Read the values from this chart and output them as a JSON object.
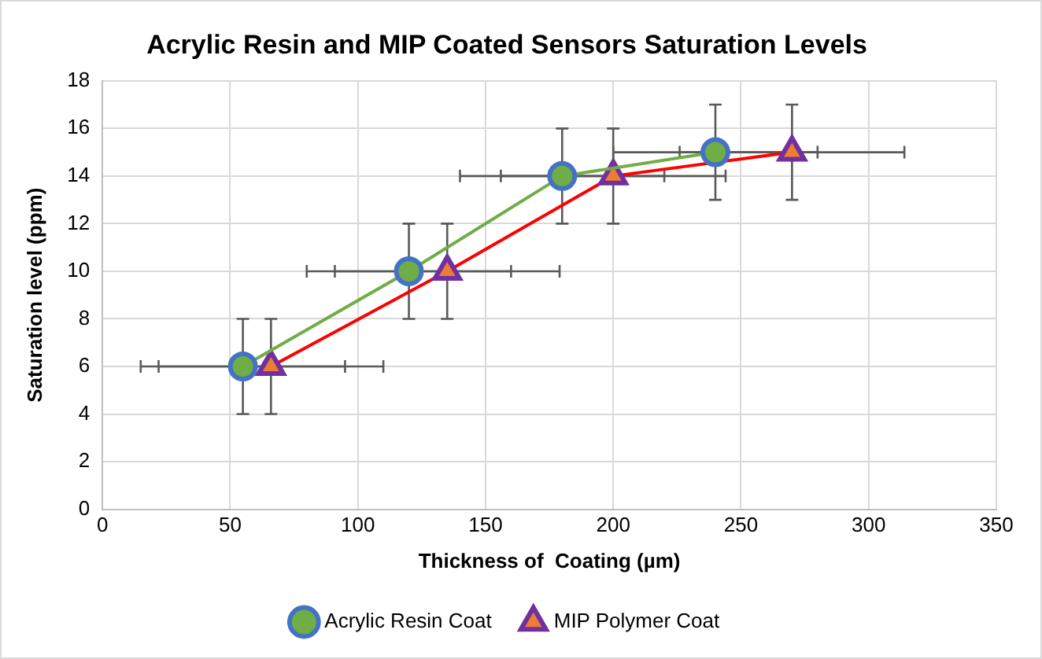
{
  "chart_data": {
    "type": "line",
    "title": "Acrylic Resin and MIP Coated Sensors Saturation Levels",
    "xlabel": "Thickness of  Coating (µm)",
    "ylabel": "Saturation level (ppm)",
    "xlim": [
      0,
      350
    ],
    "xticks": [
      0,
      50,
      100,
      150,
      200,
      250,
      300,
      350
    ],
    "ylim": [
      0,
      18
    ],
    "yticks": [
      0,
      2,
      4,
      6,
      8,
      10,
      12,
      14,
      16,
      18
    ],
    "grid": true,
    "legend": "bottom",
    "line_style": "solid",
    "series": [
      {
        "name": "Acrylic Resin Coat",
        "color": "#70ad47",
        "marker": "circle",
        "x": [
          55,
          120,
          180,
          240
        ],
        "values": [
          6,
          10,
          14,
          15
        ],
        "errors": [
          2,
          2,
          2,
          2
        ],
        "xerrors": [
          40,
          40,
          40,
          40
        ]
      },
      {
        "name": "MIP Polymer Coat",
        "color": "#ff0000",
        "marker": "triangle",
        "x": [
          66,
          135,
          200,
          270
        ],
        "values": [
          6,
          10,
          14,
          15
        ],
        "errors": [
          2,
          2,
          2,
          2
        ],
        "xerrors": [
          44,
          44,
          44,
          44
        ]
      }
    ]
  }
}
